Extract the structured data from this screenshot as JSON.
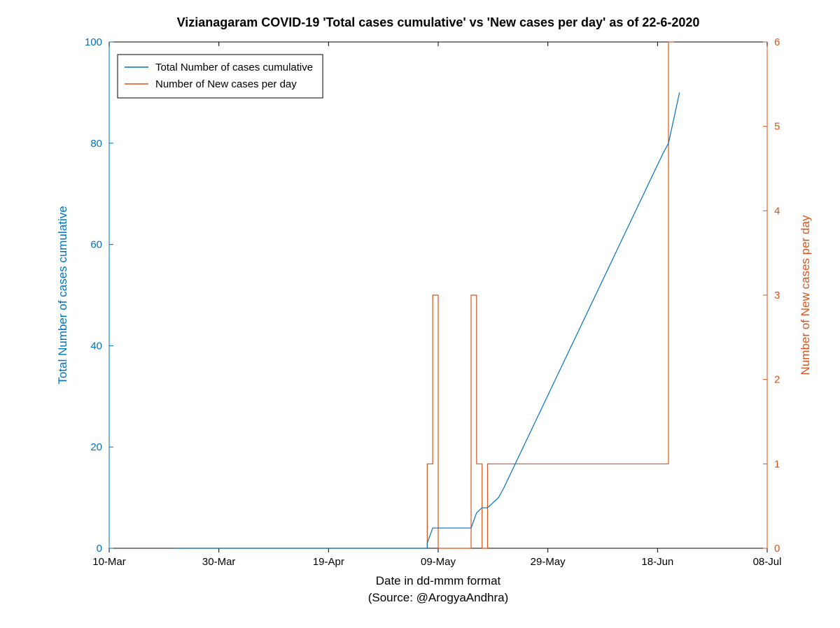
{
  "chart": {
    "type": "line-dual-axis",
    "title": "Vizianagaram COVID-19 'Total cases cumulative' vs 'New cases per day' as of 22-6-2020",
    "title_fontsize": 18,
    "xlabel_line1": "Date in dd-mmm format",
    "xlabel_line2": "(Source: @ArogyaAndhra)",
    "ylabel_left": "Total Number of cases cumulative",
    "ylabel_right": "Number of New cases per day",
    "label_fontsize": 17,
    "tick_fontsize": 15,
    "background_color": "#ffffff",
    "axis_color_black": "#000000",
    "axis_color_left": "#0072bd",
    "axis_color_right": "#d95319",
    "x_ticks": [
      "10-Mar",
      "30-Mar",
      "19-Apr",
      "09-May",
      "29-May",
      "18-Jun",
      "08-Jul"
    ],
    "x_tick_dayindex": [
      0,
      20,
      40,
      60,
      80,
      100,
      120
    ],
    "xlim": [
      0,
      120
    ],
    "y_left_ticks": [
      0,
      20,
      40,
      60,
      80,
      100
    ],
    "y_left_lim": [
      0,
      100
    ],
    "y_right_ticks": [
      0,
      1,
      2,
      3,
      4,
      5,
      6
    ],
    "y_right_lim": [
      0,
      6
    ],
    "line_width": 1.2,
    "series_cumulative": {
      "label": "Total Number of cases cumulative",
      "color": "#0072bd",
      "x": [
        12,
        58,
        58,
        59,
        60,
        61,
        65,
        66,
        67,
        68,
        69,
        70,
        71,
        72,
        101,
        102,
        103,
        104
      ],
      "y": [
        0,
        0,
        1,
        4,
        4,
        4,
        4,
        4,
        7,
        8,
        8,
        9,
        10,
        12,
        78,
        80,
        85,
        90
      ]
    },
    "series_new": {
      "label": "Number of New cases per day",
      "color": "#d95319",
      "x": [
        12,
        57,
        58,
        59,
        60,
        64,
        65,
        66,
        67,
        68,
        69,
        101,
        102,
        103
      ],
      "y": [
        0,
        0,
        1,
        3,
        0,
        0,
        0,
        3,
        1,
        0,
        1,
        1,
        6,
        6
      ]
    },
    "legend": {
      "position": "top-left-inside",
      "items": [
        {
          "color": "#0072bd",
          "text": "Total Number of cases cumulative"
        },
        {
          "color": "#d95319",
          "text": "Number of New cases per day"
        }
      ]
    }
  }
}
